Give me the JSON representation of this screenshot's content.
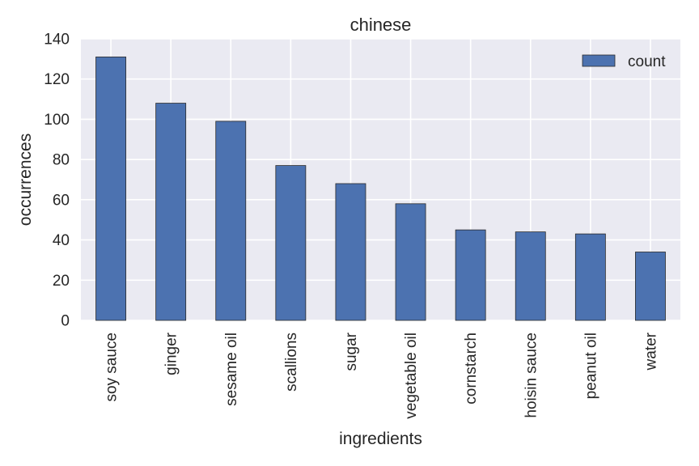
{
  "chart_data": {
    "type": "bar",
    "title": "chinese",
    "xlabel": "ingredients",
    "ylabel": "occurrences",
    "categories": [
      "soy sauce",
      "ginger",
      "sesame oil",
      "scallions",
      "sugar",
      "vegetable oil",
      "cornstarch",
      "hoisin sauce",
      "peanut oil",
      "water"
    ],
    "series": [
      {
        "name": "count",
        "values": [
          131,
          108,
          99,
          77,
          68,
          58,
          45,
          44,
          43,
          34
        ]
      }
    ],
    "ylim": [
      0,
      140
    ],
    "yticks": [
      0,
      20,
      40,
      60,
      80,
      100,
      120,
      140
    ],
    "grid": true,
    "legend": "top-right",
    "colors": {
      "bar": "#4c72b0",
      "background": "#eaeaf2",
      "grid": "#ffffff",
      "text": "#262626"
    }
  }
}
